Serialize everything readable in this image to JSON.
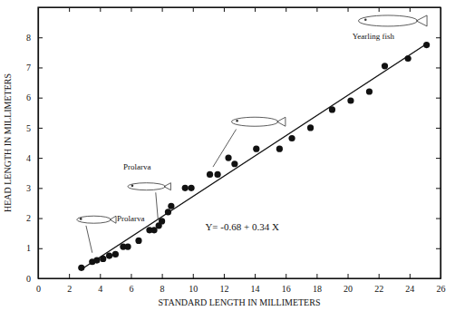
{
  "chart_data": {
    "type": "scatter",
    "xlabel": "STANDARD LENGTH IN MILLIMETERS",
    "ylabel": "HEAD LENGTH IN MILLIMETERS",
    "x": [
      2.8,
      3.5,
      3.8,
      4.2,
      4.6,
      5.0,
      5.5,
      5.8,
      6.5,
      7.2,
      7.5,
      7.8,
      8.0,
      8.4,
      8.6,
      9.5,
      9.9,
      11.1,
      11.6,
      12.3,
      12.7,
      14.1,
      15.6,
      16.4,
      17.6,
      19.0,
      20.2,
      21.4,
      22.4,
      23.9,
      25.1
    ],
    "values": [
      0.35,
      0.55,
      0.6,
      0.65,
      0.75,
      0.8,
      1.05,
      1.05,
      1.25,
      1.6,
      1.6,
      1.75,
      1.9,
      2.2,
      2.4,
      3.0,
      3.0,
      3.45,
      3.45,
      4.0,
      3.8,
      4.3,
      4.3,
      4.65,
      5.0,
      5.6,
      5.9,
      6.2,
      7.05,
      7.3,
      7.75
    ],
    "color": "#111111",
    "marker": "circle",
    "fit_line": {
      "type": "line",
      "color": "#111111",
      "x": [
        2.8,
        25.0
      ],
      "values": [
        0.3,
        7.75
      ],
      "label": "Y= -0.68 + 0.34 X"
    },
    "annotations": [
      "Prolarva",
      "Prolarva",
      "Yearling fish"
    ],
    "xlim": [
      0,
      26
    ],
    "ylim": [
      0,
      9
    ],
    "xticks": [
      0,
      2,
      4,
      6,
      8,
      10,
      12,
      14,
      16,
      18,
      20,
      22,
      24,
      26
    ],
    "yticks": [
      0,
      1,
      2,
      3,
      4,
      5,
      6,
      7,
      8
    ]
  }
}
